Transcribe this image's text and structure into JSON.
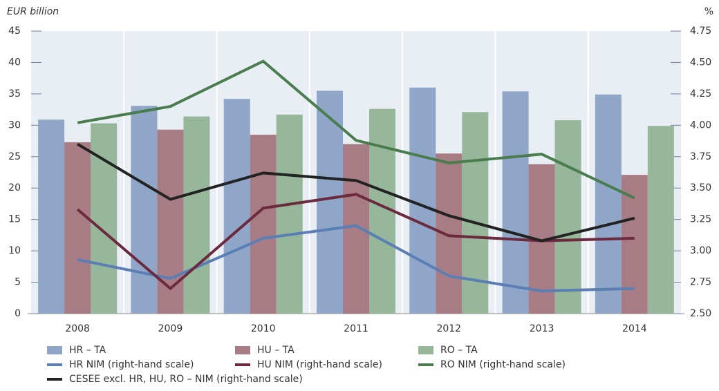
{
  "chart_data": {
    "type": "bar",
    "y_label": "EUR billion",
    "y2_label": "%",
    "categories": [
      "2008",
      "2009",
      "2010",
      "2011",
      "2012",
      "2013",
      "2014"
    ],
    "series": [
      {
        "name": "HR – TA",
        "type": "bar",
        "color": "#8fa6c8",
        "values": [
          30.9,
          33.1,
          34.2,
          35.5,
          36.0,
          35.4,
          34.9
        ]
      },
      {
        "name": "HU – TA",
        "type": "bar",
        "color": "#a87c84",
        "values": [
          27.3,
          29.3,
          28.5,
          27.0,
          25.5,
          23.8,
          22.1
        ]
      },
      {
        "name": "RO – TA",
        "type": "bar",
        "color": "#96b79a",
        "values": [
          30.3,
          31.4,
          31.7,
          32.6,
          32.1,
          30.8,
          29.9
        ]
      },
      {
        "name": "HR NIM (right-hand scale)",
        "type": "line",
        "axis": "y2",
        "color": "#5b7fb5",
        "values": [
          2.93,
          2.78,
          3.1,
          3.2,
          2.8,
          2.68,
          2.7
        ]
      },
      {
        "name": "HU NIM (right-hand scale)",
        "type": "line",
        "axis": "y2",
        "color": "#6b2a3e",
        "values": [
          3.33,
          2.7,
          3.34,
          3.45,
          3.12,
          3.08,
          3.1
        ]
      },
      {
        "name": "RO NIM (right-hand scale)",
        "type": "line",
        "axis": "y2",
        "color": "#4a7d4e",
        "values": [
          4.02,
          4.15,
          4.51,
          3.88,
          3.7,
          3.77,
          3.42
        ]
      },
      {
        "name": "CESEE excl. HR, HU, RO – NIM (right-hand scale)",
        "type": "line",
        "axis": "y2",
        "color": "#222222",
        "values": [
          3.85,
          3.41,
          3.62,
          3.56,
          3.28,
          3.08,
          3.26
        ]
      }
    ],
    "ylim": [
      0,
      45
    ],
    "yticks": [
      0,
      5,
      10,
      15,
      20,
      25,
      30,
      35,
      40,
      45
    ],
    "y2lim": [
      2.5,
      4.75
    ],
    "y2ticks": [
      {
        "value": 2.5,
        "label": "2.50"
      },
      {
        "value": 2.75,
        "label": "2.75"
      },
      {
        "value": 3,
        "label": "3.00"
      },
      {
        "value": 3.25,
        "label": "3.25"
      },
      {
        "value": 3.5,
        "label": "3.50"
      },
      {
        "value": 3.75,
        "label": "3.75"
      },
      {
        "value": 4,
        "label": "4.00"
      },
      {
        "value": 4.25,
        "label": "4.25"
      },
      {
        "value": 4.5,
        "label": "4.50"
      },
      {
        "value": 4.75,
        "label": "4.75"
      }
    ]
  }
}
